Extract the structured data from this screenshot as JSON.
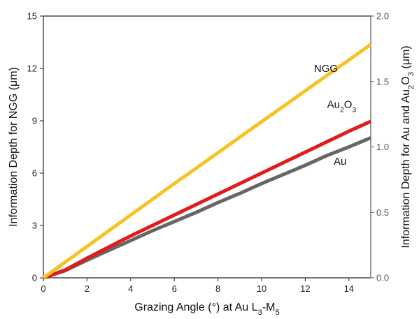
{
  "chart_data": {
    "type": "line",
    "x": [
      0,
      1,
      2,
      3,
      4,
      5,
      6,
      7,
      8,
      9,
      10,
      11,
      12,
      13,
      14,
      15
    ],
    "xlim": [
      0,
      15
    ],
    "xticks": [
      0,
      2,
      4,
      6,
      8,
      10,
      12,
      14
    ],
    "xlabel_parts": [
      "Grazing Angle (°) at Au L",
      "3",
      "-M",
      "5"
    ],
    "ylim_left": [
      0,
      15
    ],
    "yticks_left": [
      0,
      3,
      6,
      9,
      12,
      15
    ],
    "ylabel_left": "Information Depth for NGG (μm)",
    "ylim_right": [
      0,
      2.0
    ],
    "yticks_right": [
      "0.0",
      "0.5",
      "1.0",
      "1.5",
      "2.0"
    ],
    "ylabel_right_parts": [
      "Information Depth for Au and Au",
      "2",
      "O",
      "3",
      " (μm)"
    ],
    "grid": false,
    "series": [
      {
        "name": "NGG",
        "label_parts": [
          "NGG"
        ],
        "axis": "left",
        "color": "#f5c324",
        "values": [
          0,
          0.9,
          1.8,
          2.7,
          3.6,
          4.5,
          5.4,
          6.28,
          7.17,
          8.06,
          8.95,
          9.83,
          10.72,
          11.6,
          12.48,
          13.37
        ]
      },
      {
        "name": "Au2O3",
        "label_parts": [
          "Au",
          "2",
          "O",
          "3"
        ],
        "axis": "right",
        "color": "#e31a1c",
        "values": [
          0,
          0.06,
          0.15,
          0.235,
          0.32,
          0.4,
          0.48,
          0.56,
          0.64,
          0.72,
          0.8,
          0.88,
          0.96,
          1.04,
          1.12,
          1.195
        ]
      },
      {
        "name": "Au",
        "label_parts": [
          "Au"
        ],
        "axis": "right",
        "color": "#666666",
        "values": [
          0,
          0.055,
          0.135,
          0.21,
          0.285,
          0.36,
          0.43,
          0.5,
          0.575,
          0.645,
          0.72,
          0.79,
          0.86,
          0.935,
          1.0,
          1.07
        ]
      }
    ],
    "colors": {
      "axis": "#222222",
      "right_axis": "#555555"
    }
  }
}
